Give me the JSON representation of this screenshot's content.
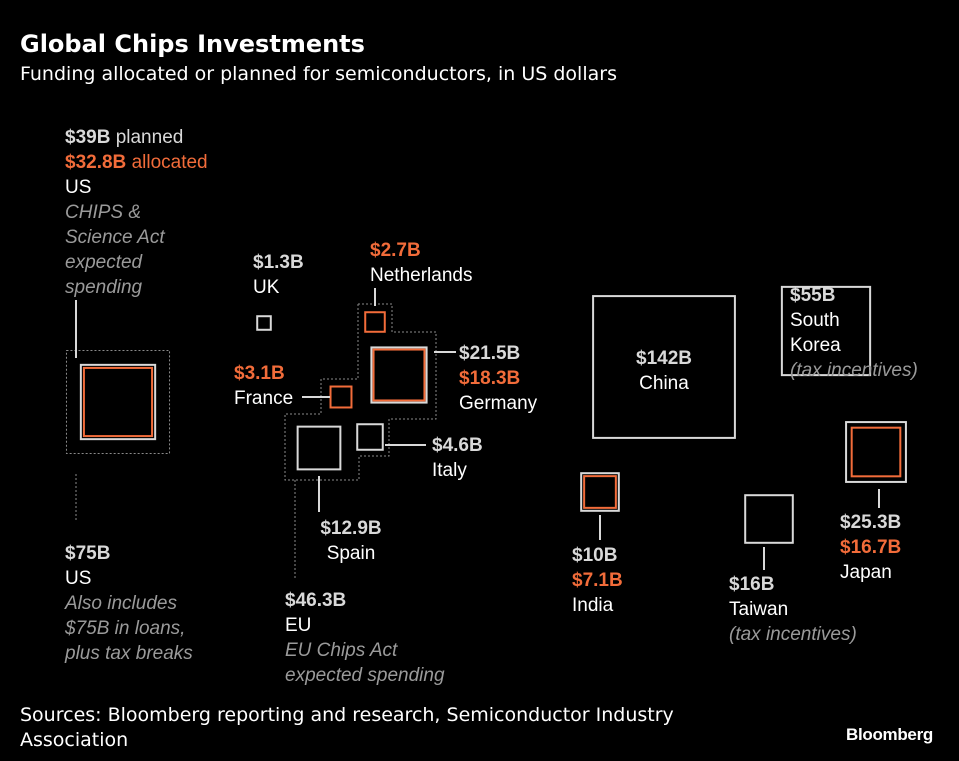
{
  "title": "Global Chips Investments",
  "subtitle": "Funding allocated or planned for semiconductors, in US dollars",
  "sources": {
    "line1": "Sources: Bloomberg reporting and research, Semiconductor Industry",
    "line2": "Association"
  },
  "logo_text": "Bloomberg",
  "colors": {
    "background": "#000000",
    "outline": "#d9d9d9",
    "allocated": "#f26c3a",
    "note": "#9a9a9a"
  },
  "chart_data": {
    "type": "proportional-square",
    "unit": "US dollars (billions)",
    "groups": [
      {
        "id": "us_total",
        "name": "US",
        "value": 75,
        "value_label": "$75B",
        "note_lines": [
          "Also includes",
          "$75B in loans,",
          "plus tax breaks"
        ]
      },
      {
        "id": "us_chips",
        "name": "US",
        "planned": 39,
        "planned_label": "$39B",
        "planned_word": "planned",
        "allocated": 32.8,
        "allocated_label": "$32.8B",
        "allocated_word": "allocated",
        "note_lines": [
          "CHIPS &",
          "Science Act",
          "expected",
          "spending"
        ]
      },
      {
        "id": "eu",
        "name": "EU",
        "value": 46.3,
        "value_label": "$46.3B",
        "note_lines": [
          "EU Chips Act",
          "expected spending"
        ]
      }
    ],
    "countries": [
      {
        "id": "uk",
        "name": "UK",
        "value": 1.3,
        "value_label": "$1.3B"
      },
      {
        "id": "netherlands",
        "name": "Netherlands",
        "allocated": 2.7,
        "allocated_label": "$2.7B"
      },
      {
        "id": "germany",
        "name": "Germany",
        "planned": 21.5,
        "planned_label": "$21.5B",
        "allocated": 18.3,
        "allocated_label": "$18.3B"
      },
      {
        "id": "france",
        "name": "France",
        "allocated": 3.1,
        "allocated_label": "$3.1B"
      },
      {
        "id": "italy",
        "name": "Italy",
        "value": 4.6,
        "value_label": "$4.6B"
      },
      {
        "id": "spain",
        "name": "Spain",
        "value": 12.9,
        "value_label": "$12.9B"
      },
      {
        "id": "china",
        "name": "China",
        "value": 142,
        "value_label": "$142B"
      },
      {
        "id": "south_korea",
        "name_lines": [
          "South",
          "Korea"
        ],
        "value": 55,
        "value_label": "$55B",
        "note": "(tax incentives)"
      },
      {
        "id": "japan",
        "name": "Japan",
        "planned": 25.3,
        "planned_label": "$25.3B",
        "allocated": 16.7,
        "allocated_label": "$16.7B"
      },
      {
        "id": "india",
        "name": "India",
        "planned": 10,
        "planned_label": "$10B",
        "allocated": 7.1,
        "allocated_label": "$7.1B"
      },
      {
        "id": "taiwan",
        "name": "Taiwan",
        "value": 16,
        "value_label": "$16B",
        "note": "(tax incentives)"
      }
    ]
  }
}
